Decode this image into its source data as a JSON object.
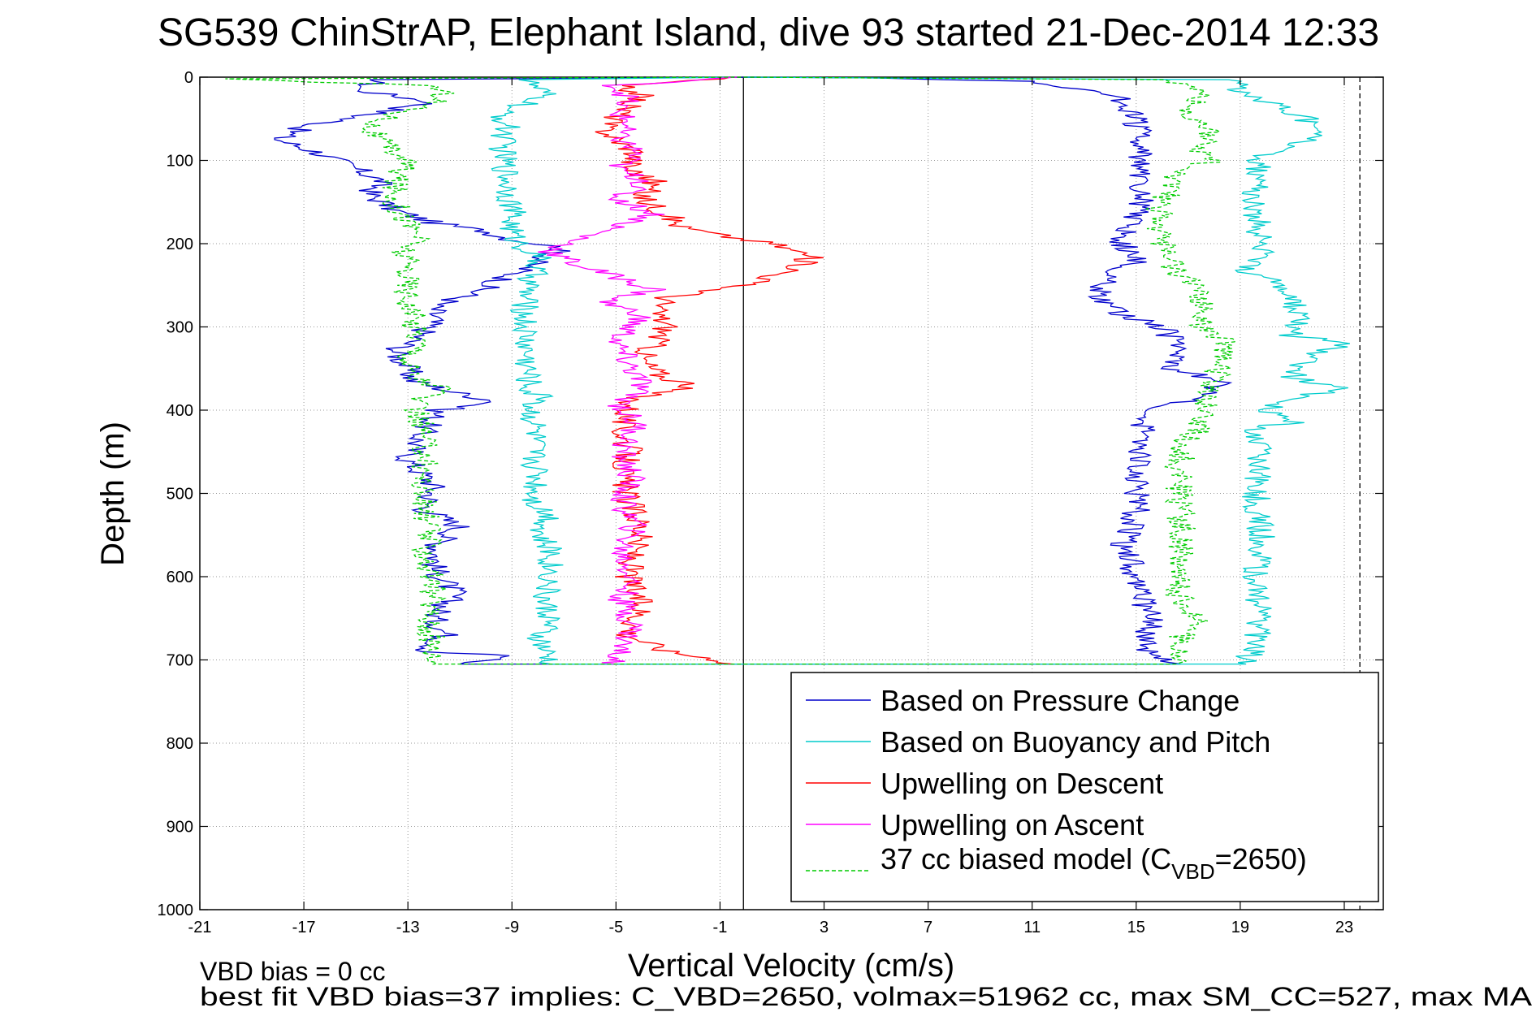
{
  "chart_data": {
    "type": "line",
    "title": "SG539 ChinStrAP, Elephant Island, dive 93 started 21-Dec-2014 12:33",
    "xlabel": "Vertical Velocity (cm/s)",
    "ylabel": "Depth (m)",
    "xlim": [
      -21,
      24.5
    ],
    "ylim": [
      0,
      1000
    ],
    "y_reversed": true,
    "grid": true,
    "legend_position": "bottom-right",
    "x_ticks": [
      "-21",
      "-17",
      "-13",
      "-9",
      "-5",
      "-1",
      "3",
      "7",
      "11",
      "15",
      "19",
      "23"
    ],
    "y_ticks": [
      "0",
      "100",
      "200",
      "300",
      "400",
      "500",
      "600",
      "700",
      "800",
      "900",
      "1000"
    ],
    "zero_line_x": -0.1,
    "dashed_line_x": 23.6,
    "legend": [
      {
        "label": "Based on Pressure Change"
      },
      {
        "label": "Based on Buoyancy and Pitch"
      },
      {
        "label": "Upwelling on Descent"
      },
      {
        "label": "Upwelling on Ascent"
      },
      {
        "label_main": "37 cc biased model (C",
        "label_sub": "VBD",
        "label_tail": "=2650)"
      }
    ],
    "series": [
      {
        "color": "#0000cc",
        "dashed": false,
        "points": [
          [
            0,
            0
          ],
          [
            -14,
            3
          ],
          [
            -15,
            15
          ],
          [
            -12,
            30
          ],
          [
            -14.5,
            45
          ],
          [
            -17,
            60
          ],
          [
            -18,
            75
          ],
          [
            -16.5,
            90
          ],
          [
            -15,
            110
          ],
          [
            -14,
            125
          ],
          [
            -14.5,
            140
          ],
          [
            -13.5,
            160
          ],
          [
            -12,
            175
          ],
          [
            -10,
            185
          ],
          [
            -9,
            195
          ],
          [
            -7,
            205
          ],
          [
            -8,
            220
          ],
          [
            -8.5,
            230
          ],
          [
            -9.5,
            245
          ],
          [
            -10.5,
            260
          ],
          [
            -12,
            275
          ],
          [
            -12,
            290
          ],
          [
            -12.5,
            310
          ],
          [
            -13.5,
            330
          ],
          [
            -13,
            350
          ],
          [
            -12.8,
            365
          ],
          [
            -11,
            380
          ],
          [
            -9.5,
            390
          ],
          [
            -11.8,
            400
          ],
          [
            -12.5,
            430
          ],
          [
            -13,
            460
          ],
          [
            -12,
            490
          ],
          [
            -12.3,
            520
          ],
          [
            -11,
            540
          ],
          [
            -11.8,
            560
          ],
          [
            -12,
            590
          ],
          [
            -11.2,
            620
          ],
          [
            -12,
            650
          ],
          [
            -11.5,
            670
          ],
          [
            -12.3,
            690
          ],
          [
            -9,
            695
          ],
          [
            -11,
            705
          ],
          [
            1,
            705
          ],
          [
            16.5,
            705
          ],
          [
            15.5,
            690
          ],
          [
            15.5,
            650
          ],
          [
            15,
            600
          ],
          [
            14.5,
            560
          ],
          [
            15,
            520
          ],
          [
            15,
            470
          ],
          [
            15.2,
            420
          ],
          [
            16,
            395
          ],
          [
            18,
            385
          ],
          [
            18.2,
            365
          ],
          [
            16.5,
            350
          ],
          [
            16.5,
            320
          ],
          [
            16,
            300
          ],
          [
            14.5,
            285
          ],
          [
            13.5,
            260
          ],
          [
            14,
            240
          ],
          [
            15,
            220
          ],
          [
            14.5,
            200
          ],
          [
            14.5,
            190
          ],
          [
            15,
            170
          ],
          [
            15.2,
            140
          ],
          [
            15.2,
            110
          ],
          [
            15.2,
            80
          ],
          [
            15,
            60
          ],
          [
            14.8,
            40
          ],
          [
            14,
            20
          ],
          [
            11,
            5
          ],
          [
            5,
            1
          ],
          [
            0,
            0
          ]
        ]
      },
      {
        "color": "#00cccc",
        "dashed": false,
        "points": [
          [
            0,
            0
          ],
          [
            -8.5,
            3
          ],
          [
            -7.8,
            20
          ],
          [
            -8.2,
            30
          ],
          [
            -9.5,
            40
          ],
          [
            -9.2,
            60
          ],
          [
            -9.4,
            80
          ],
          [
            -9.3,
            100
          ],
          [
            -9.1,
            130
          ],
          [
            -9,
            160
          ],
          [
            -9,
            190
          ],
          [
            -8.5,
            205
          ],
          [
            -8,
            215
          ],
          [
            -8.2,
            240
          ],
          [
            -8.5,
            260
          ],
          [
            -8.5,
            300
          ],
          [
            -8.4,
            350
          ],
          [
            -8.3,
            380
          ],
          [
            -7.5,
            385
          ],
          [
            -8.3,
            395
          ],
          [
            -8.1,
            420
          ],
          [
            -8.2,
            450
          ],
          [
            -8,
            480
          ],
          [
            -8.1,
            510
          ],
          [
            -7.5,
            530
          ],
          [
            -8,
            550
          ],
          [
            -7.5,
            570
          ],
          [
            -7.5,
            600
          ],
          [
            -7.8,
            630
          ],
          [
            -7.5,
            650
          ],
          [
            -8,
            670
          ],
          [
            -7.8,
            690
          ],
          [
            -7.5,
            705
          ],
          [
            1,
            705
          ],
          [
            19,
            705
          ],
          [
            19.5,
            690
          ],
          [
            19.8,
            650
          ],
          [
            19.6,
            600
          ],
          [
            19.8,
            550
          ],
          [
            19.6,
            500
          ],
          [
            19.8,
            450
          ],
          [
            19.6,
            420
          ],
          [
            21,
            415
          ],
          [
            19.8,
            400
          ],
          [
            21,
            385
          ],
          [
            23,
            375
          ],
          [
            21,
            360
          ],
          [
            21.5,
            340
          ],
          [
            23,
            320
          ],
          [
            21,
            310
          ],
          [
            21.5,
            290
          ],
          [
            21,
            270
          ],
          [
            20.5,
            250
          ],
          [
            19,
            230
          ],
          [
            20,
            210
          ],
          [
            19.8,
            190
          ],
          [
            19.6,
            160
          ],
          [
            19.6,
            130
          ],
          [
            19.8,
            100
          ],
          [
            20.5,
            85
          ],
          [
            22.5,
            70
          ],
          [
            21.5,
            50
          ],
          [
            21,
            40
          ],
          [
            20,
            30
          ],
          [
            19,
            15
          ],
          [
            18.8,
            3
          ],
          [
            5,
            1
          ],
          [
            0,
            0
          ]
        ]
      },
      {
        "color": "#ff0000",
        "dashed": false,
        "points": [
          [
            -0.4,
            0
          ],
          [
            -5,
            10
          ],
          [
            -4,
            20
          ],
          [
            -4.5,
            35
          ],
          [
            -5,
            50
          ],
          [
            -5.5,
            60
          ],
          [
            -5,
            75
          ],
          [
            -4.2,
            90
          ],
          [
            -4.5,
            110
          ],
          [
            -3.5,
            125
          ],
          [
            -4,
            145
          ],
          [
            -3,
            165
          ],
          [
            -2.5,
            180
          ],
          [
            -1,
            190
          ],
          [
            1,
            200
          ],
          [
            2.5,
            215
          ],
          [
            2,
            230
          ],
          [
            0.5,
            245
          ],
          [
            -1,
            255
          ],
          [
            -3,
            265
          ],
          [
            -3.5,
            280
          ],
          [
            -3,
            300
          ],
          [
            -3.5,
            320
          ],
          [
            -4,
            340
          ],
          [
            -3.2,
            360
          ],
          [
            -2,
            370
          ],
          [
            -4.3,
            385
          ],
          [
            -4.8,
            420
          ],
          [
            -4.5,
            450
          ],
          [
            -4.8,
            480
          ],
          [
            -4.5,
            510
          ],
          [
            -4,
            540
          ],
          [
            -4.3,
            570
          ],
          [
            -4.5,
            600
          ],
          [
            -4,
            640
          ],
          [
            -4.5,
            670
          ],
          [
            -3,
            690
          ],
          [
            -1,
            700
          ],
          [
            -0.5,
            705
          ]
        ]
      },
      {
        "color": "#ff00ff",
        "dashed": false,
        "points": [
          [
            -0.4,
            0
          ],
          [
            -5,
            10
          ],
          [
            -4.5,
            25
          ],
          [
            -5,
            40
          ],
          [
            -4.5,
            55
          ],
          [
            -5,
            70
          ],
          [
            -4.2,
            90
          ],
          [
            -5,
            110
          ],
          [
            -3.8,
            125
          ],
          [
            -5,
            145
          ],
          [
            -3.5,
            165
          ],
          [
            -5,
            180
          ],
          [
            -6.5,
            195
          ],
          [
            -7.5,
            210
          ],
          [
            -6.5,
            225
          ],
          [
            -5,
            240
          ],
          [
            -3.5,
            255
          ],
          [
            -5.5,
            270
          ],
          [
            -4,
            285
          ],
          [
            -4.5,
            300
          ],
          [
            -5,
            320
          ],
          [
            -4.5,
            345
          ],
          [
            -4,
            370
          ],
          [
            -4.8,
            395
          ],
          [
            -4.2,
            420
          ],
          [
            -4.8,
            450
          ],
          [
            -4.4,
            480
          ],
          [
            -4.8,
            510
          ],
          [
            -4.3,
            540
          ],
          [
            -4.8,
            570
          ],
          [
            -4.4,
            600
          ],
          [
            -4.8,
            630
          ],
          [
            -4.3,
            660
          ],
          [
            -4.8,
            685
          ],
          [
            -5,
            700
          ],
          [
            -5,
            705
          ]
        ]
      },
      {
        "color": "#00cc00",
        "dashed": true,
        "points": [
          [
            0,
            0
          ],
          [
            -20.5,
            2
          ],
          [
            -12,
            10
          ],
          [
            -11.5,
            25
          ],
          [
            -13.5,
            45
          ],
          [
            -14.5,
            60
          ],
          [
            -14,
            80
          ],
          [
            -13,
            100
          ],
          [
            -13.5,
            125
          ],
          [
            -13.5,
            150
          ],
          [
            -13,
            175
          ],
          [
            -12.5,
            190
          ],
          [
            -13.2,
            210
          ],
          [
            -13,
            230
          ],
          [
            -13,
            260
          ],
          [
            -12.8,
            290
          ],
          [
            -12.5,
            320
          ],
          [
            -13,
            340
          ],
          [
            -12.8,
            360
          ],
          [
            -11.5,
            375
          ],
          [
            -12.8,
            390
          ],
          [
            -12.5,
            420
          ],
          [
            -12.3,
            460
          ],
          [
            -12.5,
            500
          ],
          [
            -12.2,
            540
          ],
          [
            -12.3,
            580
          ],
          [
            -12,
            620
          ],
          [
            -12.2,
            660
          ],
          [
            -12,
            690
          ],
          [
            -12,
            705
          ],
          [
            1,
            705
          ],
          [
            17,
            705
          ],
          [
            16.5,
            690
          ],
          [
            16.8,
            670
          ],
          [
            17.8,
            655
          ],
          [
            16.8,
            640
          ],
          [
            16.5,
            600
          ],
          [
            16.8,
            560
          ],
          [
            16.7,
            520
          ],
          [
            16.6,
            480
          ],
          [
            16.8,
            440
          ],
          [
            17.5,
            420
          ],
          [
            17.5,
            400
          ],
          [
            17.8,
            380
          ],
          [
            18,
            365
          ],
          [
            18.5,
            320
          ],
          [
            17.5,
            300
          ],
          [
            17.5,
            270
          ],
          [
            17.2,
            250
          ],
          [
            16.5,
            230
          ],
          [
            16.2,
            210
          ],
          [
            15.8,
            180
          ],
          [
            16,
            150
          ],
          [
            16.5,
            120
          ],
          [
            17.8,
            100
          ],
          [
            17.5,
            85
          ],
          [
            17.8,
            60
          ],
          [
            17,
            40
          ],
          [
            17.5,
            20
          ],
          [
            16.8,
            8
          ],
          [
            16,
            3
          ],
          [
            5,
            1
          ],
          [
            0,
            0
          ]
        ]
      }
    ],
    "annotations": [
      {
        "text": "VBD bias = 0 cc"
      },
      {
        "text": "best fit VBD bias=37 implies: C_VBD=2650, volmax=51962 cc, max SM_CC=527, max MA"
      }
    ]
  }
}
